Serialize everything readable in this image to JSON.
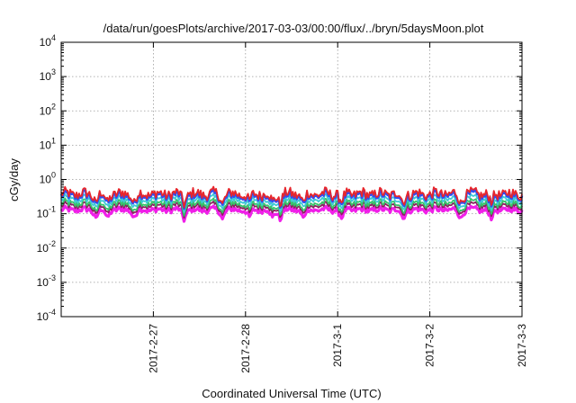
{
  "chart_data": {
    "type": "line",
    "title": "/data/run/goesPlots/archive/2017-03-03/00:00/flux/../bryn/5daysMoon.plot",
    "xlabel": "Coordinated Universal Time (UTC)",
    "ylabel": "cGy/day",
    "yscale": "log",
    "ylim": [
      0.0001,
      10000
    ],
    "y_ticks": [
      {
        "base": "10",
        "exp": "-4",
        "value": 0.0001
      },
      {
        "base": "10",
        "exp": "-3",
        "value": 0.001
      },
      {
        "base": "10",
        "exp": "-2",
        "value": 0.01
      },
      {
        "base": "10",
        "exp": "-1",
        "value": 0.1
      },
      {
        "base": "10",
        "exp": "0",
        "value": 1
      },
      {
        "base": "10",
        "exp": "1",
        "value": 10
      },
      {
        "base": "10",
        "exp": "2",
        "value": 100
      },
      {
        "base": "10",
        "exp": "3",
        "value": 1000
      },
      {
        "base": "10",
        "exp": "4",
        "value": 10000
      }
    ],
    "xlim": [
      "2017-02-26 00:00",
      "2017-03-03 00:00"
    ],
    "x_ticks": [
      "2017-2-27",
      "2017-2-28",
      "2017-3-1",
      "2017-3-2",
      "2017-3-3"
    ],
    "grid": true,
    "series": [
      {
        "color": "#e8262b",
        "level": 0.38
      },
      {
        "color": "#2f4df2",
        "level": 0.34
      },
      {
        "color": "#3ec9d6",
        "level": 0.26
      },
      {
        "color": "#36c46a",
        "level": 0.2
      },
      {
        "color": "#8a1f5e",
        "level": 0.17
      },
      {
        "color": "#f01fe8",
        "level": 0.13
      }
    ],
    "dropouts": [
      "2017-02-26 09:00",
      "2017-02-26 12:00",
      "2017-02-26 19:00",
      "2017-02-27 08:00",
      "2017-02-27 18:00",
      "2017-02-28 01:00",
      "2017-02-28 07:00",
      "2017-02-28 09:00",
      "2017-02-28 15:00",
      "2017-03-01 01:00",
      "2017-03-01 17:00",
      "2017-03-02 08:00",
      "2017-03-02 16:00"
    ]
  }
}
